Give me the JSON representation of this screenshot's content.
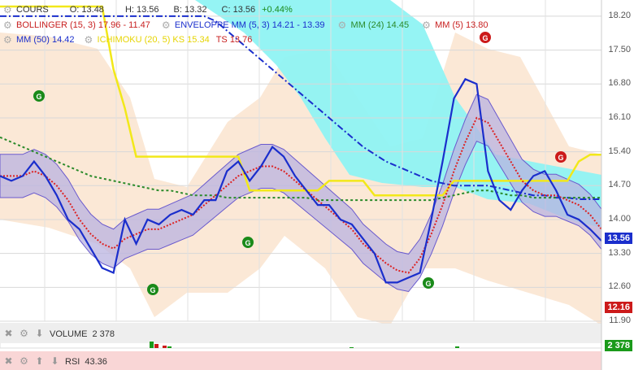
{
  "header": {
    "cours_label": "COURS",
    "open": "O: 13.48",
    "high": "H: 13.56",
    "low": "B: 13.32",
    "close": "C: 13.56",
    "change": "+0.44%"
  },
  "indicators": {
    "bollinger": "BOLLINGER (15, 3)  17.96 - 11.47",
    "enveloppe": "ENVELOPPE MM (5, 3)  14.21 - 13.39",
    "mm24": "MM (24)  14.45",
    "mm5": "MM (5)  13.80",
    "mm50": "MM (50)  14.42",
    "ichimoku": "ICHIMOKU (20, 5)  KS 15.34",
    "ts": "TS 13.76"
  },
  "volume_panel": {
    "label": "VOLUME",
    "value": "2 378",
    "tag": "2 378"
  },
  "rsi_panel": {
    "label": "RSI",
    "value": "43.36"
  },
  "price_tags": {
    "last": "13.56",
    "low": "12.16"
  },
  "signal_marker": "G",
  "colors": {
    "price": "#1a2ecc",
    "bollinger": "#cc2222",
    "enveloppe_fill": "#b9b3e0",
    "mm5": "#dd2222",
    "mm24": "#2a8a2a",
    "mm50": "#1a2ecc",
    "ichimoku_ks": "#f2e81a",
    "cloud": "#8ff3f3",
    "bollinger_fill": "#fbe6d2"
  },
  "chart_data": {
    "type": "line",
    "y_ticks": [
      18.2,
      17.5,
      16.8,
      16.1,
      15.4,
      14.7,
      14.0,
      13.3,
      12.6,
      11.9
    ],
    "ylim": [
      11.9,
      18.4
    ],
    "grid": true,
    "series": [
      {
        "name": "COURS",
        "values": [
          14.9,
          14.8,
          14.9,
          15.2,
          14.9,
          14.5,
          14.0,
          13.8,
          13.4,
          13.0,
          12.9,
          14.0,
          13.5,
          14.0,
          13.9,
          14.1,
          14.2,
          14.1,
          14.4,
          14.4,
          15.0,
          15.2,
          14.8,
          15.1,
          15.5,
          15.3,
          14.9,
          14.6,
          14.3,
          14.3,
          14.0,
          13.9,
          13.6,
          13.3,
          12.7,
          12.7,
          12.8,
          12.9,
          14.0,
          15.2,
          16.5,
          16.9,
          16.8,
          15.0,
          14.4,
          14.2,
          14.6,
          14.9,
          15.0,
          14.6,
          14.1,
          14.0,
          13.8,
          13.56
        ]
      },
      {
        "name": "MM (5)",
        "values": [
          14.9,
          14.9,
          14.9,
          15.0,
          14.9,
          14.7,
          14.4,
          14.0,
          13.7,
          13.5,
          13.4,
          13.6,
          13.7,
          13.8,
          13.8,
          13.9,
          14.0,
          14.1,
          14.3,
          14.5,
          14.7,
          14.9,
          15.0,
          15.1,
          15.1,
          15.0,
          14.8,
          14.6,
          14.4,
          14.2,
          14.0,
          13.8,
          13.5,
          13.3,
          13.1,
          12.95,
          12.9,
          13.2,
          13.7,
          14.3,
          15.0,
          15.6,
          16.1,
          16.0,
          15.6,
          15.2,
          14.8,
          14.6,
          14.5,
          14.5,
          14.4,
          14.3,
          14.1,
          13.8
        ]
      },
      {
        "name": "MM (24)",
        "values": [
          15.7,
          15.6,
          15.5,
          15.4,
          15.3,
          15.2,
          15.1,
          15.0,
          14.9,
          14.85,
          14.8,
          14.75,
          14.7,
          14.65,
          14.6,
          14.6,
          14.55,
          14.5,
          14.5,
          14.5,
          14.45,
          14.45,
          14.45,
          14.45,
          14.45,
          14.45,
          14.45,
          14.45,
          14.4,
          14.4,
          14.4,
          14.4,
          14.4,
          14.4,
          14.4,
          14.4,
          14.4,
          14.4,
          14.4,
          14.45,
          14.5,
          14.55,
          14.6,
          14.6,
          14.55,
          14.5,
          14.5,
          14.45,
          14.45,
          14.45,
          14.45,
          14.45,
          14.45,
          14.45
        ]
      },
      {
        "name": "MM (50)",
        "values": [
          18.2,
          18.2,
          18.2,
          18.2,
          18.2,
          18.2,
          18.2,
          18.2,
          18.2,
          18.2,
          18.2,
          18.2,
          18.2,
          18.2,
          18.2,
          18.2,
          18.2,
          18.2,
          18.2,
          18.1,
          17.9,
          17.7,
          17.5,
          17.3,
          17.1,
          16.9,
          16.7,
          16.5,
          16.3,
          16.1,
          15.9,
          15.7,
          15.5,
          15.35,
          15.2,
          15.1,
          15.0,
          14.9,
          14.8,
          14.75,
          14.7,
          14.7,
          14.7,
          14.7,
          14.65,
          14.6,
          14.55,
          14.5,
          14.5,
          14.45,
          14.45,
          14.42,
          14.42,
          14.42
        ]
      },
      {
        "name": "ICHIMOKU KS",
        "values": [
          18.4,
          18.4,
          18.4,
          18.4,
          18.4,
          18.4,
          18.4,
          18.4,
          18.4,
          18.4,
          17.1,
          16.3,
          15.3,
          15.3,
          15.3,
          15.3,
          15.3,
          15.3,
          15.3,
          15.3,
          15.3,
          15.3,
          14.6,
          14.6,
          14.6,
          14.6,
          14.6,
          14.6,
          14.6,
          14.8,
          14.8,
          14.8,
          14.8,
          14.5,
          14.5,
          14.5,
          14.5,
          14.5,
          14.5,
          14.5,
          14.8,
          14.8,
          14.8,
          14.8,
          14.8,
          14.8,
          14.8,
          14.8,
          14.8,
          14.8,
          14.8,
          15.2,
          15.34,
          15.34
        ]
      }
    ]
  }
}
